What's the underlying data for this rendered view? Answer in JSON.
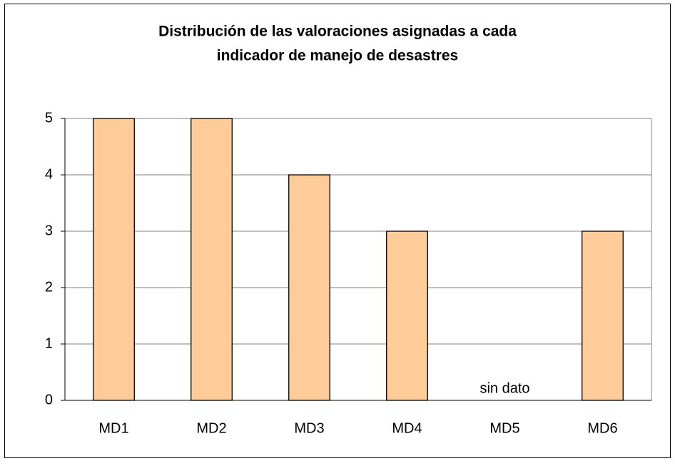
{
  "chart_data": {
    "type": "bar",
    "title": [
      "Distribución de las valoraciones asignadas a cada",
      "indicador de manejo de desastres"
    ],
    "categories": [
      "MD1",
      "MD2",
      "MD3",
      "MD4",
      "MD5",
      "MD6"
    ],
    "values": [
      5,
      5,
      4,
      3,
      null,
      3
    ],
    "color": "#ffcc99",
    "ylim": [
      0,
      5
    ],
    "yticks": [
      0,
      1,
      2,
      3,
      4,
      5
    ],
    "grid": true,
    "annotations": [
      {
        "text": "sin dato",
        "category": "MD5"
      }
    ]
  }
}
